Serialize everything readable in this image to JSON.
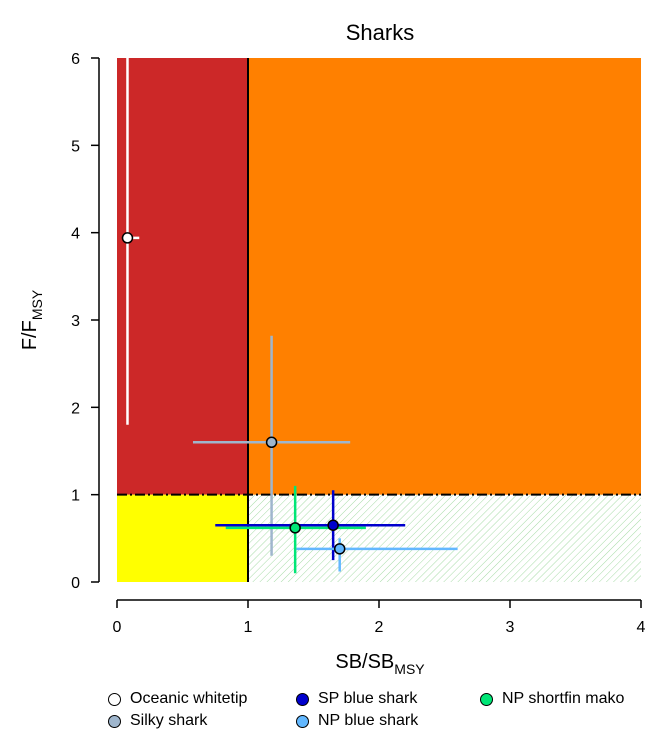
{
  "chart_data": {
    "type": "scatter",
    "title": "Sharks",
    "xlabel": {
      "main": "SB/SB",
      "sub": "MSY"
    },
    "ylabel": {
      "main": "F/F",
      "sub": "MSY"
    },
    "xlim": [
      0,
      4
    ],
    "ylim": [
      0,
      6
    ],
    "xticks": [
      "0",
      "1",
      "2",
      "3",
      "4"
    ],
    "yticks": [
      "0",
      "1",
      "2",
      "3",
      "4",
      "5",
      "6"
    ],
    "quadrants": {
      "overfished_overfishing_color": "#cc2828",
      "overfishing_color": "#ff8000",
      "overfished_color": "#ffff00",
      "healthy_color": "#5fbf5f"
    },
    "reference_lines": {
      "vertical_x": 1,
      "horizontal_y": 1
    },
    "series": [
      {
        "name": "Oceanic whitetip",
        "color": "#ffffff",
        "x": 0.08,
        "y": 3.94,
        "x_range": [
          0.04,
          0.17
        ],
        "y_range": [
          1.8,
          6.2
        ]
      },
      {
        "name": "Silky shark",
        "color": "#9fb6cd",
        "x": 1.18,
        "y": 1.6,
        "x_range": [
          0.58,
          1.78
        ],
        "y_range": [
          0.3,
          2.82
        ]
      },
      {
        "name": "SP blue shark",
        "color": "#0000cd",
        "x": 1.65,
        "y": 0.65,
        "x_range": [
          0.75,
          2.2
        ],
        "y_range": [
          0.25,
          1.05
        ]
      },
      {
        "name": "NP blue shark",
        "color": "#63b8ff",
        "x": 1.7,
        "y": 0.38,
        "x_range": [
          1.37,
          2.6
        ],
        "y_range": [
          0.12,
          0.5
        ]
      },
      {
        "name": "NP shortfin mako",
        "color": "#00e676",
        "x": 1.36,
        "y": 0.62,
        "x_range": [
          0.83,
          1.9
        ],
        "y_range": [
          0.1,
          1.1
        ]
      }
    ]
  }
}
